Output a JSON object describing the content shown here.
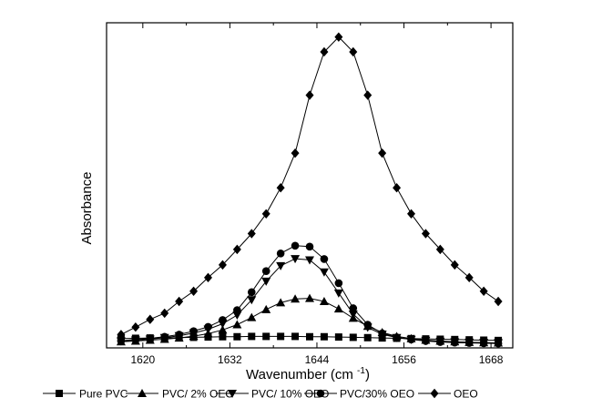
{
  "chart_data": {
    "type": "line",
    "xlabel": "Wavenumber (cm",
    "xlabel_sup": "-1",
    "xlabel_close": ")",
    "ylabel": "Absorbance",
    "xlim": [
      1615,
      1671
    ],
    "ylim": [
      0,
      1.05
    ],
    "x_ticks": [
      1620,
      1632,
      1644,
      1656,
      1668
    ],
    "x_tick_labels": [
      "1620",
      "1632",
      "1644",
      "1656",
      "1668"
    ],
    "y_ticks_shown": false,
    "grid": false,
    "legend_position": "bottom",
    "x": [
      1617,
      1619,
      1621,
      1623,
      1625,
      1627,
      1629,
      1631,
      1633,
      1635,
      1637,
      1639,
      1641,
      1643,
      1645,
      1647,
      1649,
      1651,
      1653,
      1655,
      1657,
      1659,
      1661,
      1663,
      1665,
      1667,
      1669
    ],
    "series": [
      {
        "name": "Pure PVC",
        "marker": "square",
        "values": [
          0.03,
          0.031,
          0.032,
          0.032,
          0.033,
          0.034,
          0.035,
          0.036,
          0.036,
          0.037,
          0.037,
          0.037,
          0.037,
          0.036,
          0.036,
          0.035,
          0.034,
          0.033,
          0.032,
          0.031,
          0.03,
          0.029,
          0.028,
          0.027,
          0.026,
          0.025,
          0.024
        ]
      },
      {
        "name": "PVC/ 2% OEO",
        "marker": "triangle-up",
        "values": [
          0.02,
          0.022,
          0.025,
          0.028,
          0.032,
          0.038,
          0.046,
          0.058,
          0.075,
          0.098,
          0.124,
          0.146,
          0.158,
          0.16,
          0.15,
          0.126,
          0.096,
          0.07,
          0.05,
          0.037,
          0.03,
          0.025,
          0.022,
          0.02,
          0.018,
          0.017,
          0.016
        ]
      },
      {
        "name": "PVC/ 10% OEO",
        "marker": "triangle-down",
        "values": [
          0.022,
          0.025,
          0.028,
          0.033,
          0.039,
          0.048,
          0.06,
          0.078,
          0.106,
          0.155,
          0.215,
          0.265,
          0.288,
          0.284,
          0.245,
          0.177,
          0.109,
          0.066,
          0.044,
          0.033,
          0.027,
          0.024,
          0.021,
          0.019,
          0.018,
          0.017,
          0.016
        ]
      },
      {
        "name": "PVC/30% OEO",
        "marker": "circle",
        "values": [
          0.023,
          0.027,
          0.031,
          0.036,
          0.043,
          0.054,
          0.068,
          0.09,
          0.122,
          0.18,
          0.248,
          0.305,
          0.33,
          0.327,
          0.287,
          0.209,
          0.128,
          0.075,
          0.047,
          0.034,
          0.027,
          0.022,
          0.019,
          0.017,
          0.016,
          0.015,
          0.014
        ]
      },
      {
        "name": "OEO",
        "marker": "diamond",
        "values": [
          0.043,
          0.067,
          0.092,
          0.112,
          0.15,
          0.183,
          0.227,
          0.268,
          0.318,
          0.369,
          0.433,
          0.517,
          0.629,
          0.816,
          0.956,
          1.004,
          0.956,
          0.816,
          0.629,
          0.517,
          0.433,
          0.369,
          0.318,
          0.268,
          0.227,
          0.183,
          0.15
        ]
      }
    ]
  }
}
